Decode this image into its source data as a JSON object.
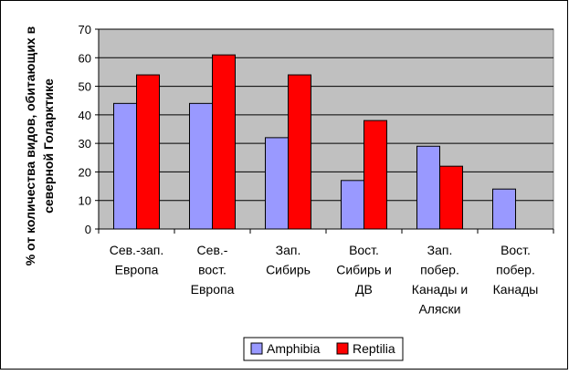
{
  "chart_data": {
    "type": "bar",
    "title": "",
    "xlabel": "",
    "ylabel_lines": [
      "% от количества видов, обитающих в",
      "северной Голарктике"
    ],
    "ylim": [
      0,
      70
    ],
    "yticks": [
      0,
      10,
      20,
      30,
      40,
      50,
      60,
      70
    ],
    "grid": "horizontal",
    "legend_position": "bottom",
    "categories": [
      [
        "Сев.-зап.",
        "Европа"
      ],
      [
        "Сев.-",
        "вост.",
        "Европа"
      ],
      [
        "Зап.",
        "Сибирь"
      ],
      [
        "Вост.",
        "Сибирь и",
        "ДВ"
      ],
      [
        "Зап.",
        "побер.",
        "Канады и",
        "Аляски"
      ],
      [
        "Вост.",
        "побер.",
        "Канады"
      ]
    ],
    "series": [
      {
        "name": "Amphibia",
        "color": "#9999ff",
        "values": [
          44,
          44,
          32,
          17,
          29,
          14
        ]
      },
      {
        "name": "Reptilia",
        "color": "#ff0000",
        "values": [
          54,
          61,
          54,
          38,
          22,
          null
        ]
      }
    ],
    "colors": {
      "plot_bg": "#c0c0c0",
      "border": "#000000",
      "bar_stroke": "#000000"
    }
  }
}
